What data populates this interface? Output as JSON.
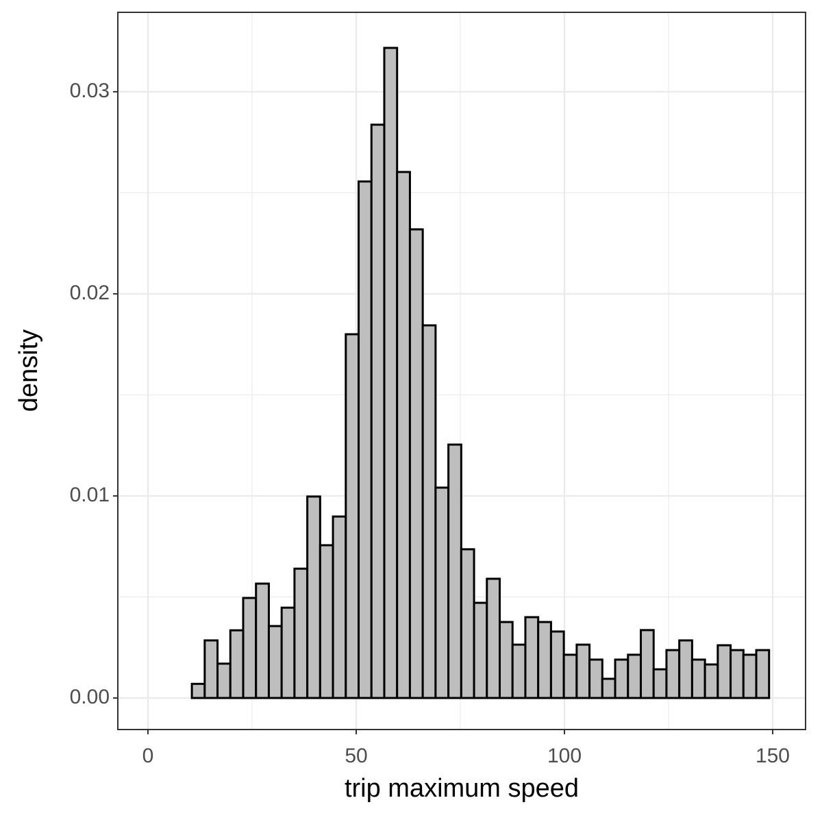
{
  "chart_data": {
    "type": "histogram",
    "x_label": "trip maximum speed",
    "y_label": "density",
    "bins": [
      1.3,
      4.38,
      7.46,
      10.54,
      13.62,
      16.7,
      19.78,
      22.86,
      25.94,
      29.02,
      32.1,
      35.18,
      38.26,
      41.34,
      44.42,
      47.5,
      50.58,
      53.66,
      56.74,
      59.82,
      62.9,
      65.98,
      69.06,
      72.14,
      75.22,
      78.3,
      81.38,
      84.46,
      87.54,
      90.62,
      93.7,
      96.78,
      99.86,
      102.94,
      106.02,
      109.1,
      112.18,
      115.26,
      118.34,
      121.42,
      124.5,
      127.58,
      130.66,
      133.74,
      136.82,
      139.9,
      142.98,
      146.06,
      149.14
    ],
    "values": [
      0,
      0,
      0,
      0.0007,
      0.00285,
      0.0017,
      0.00335,
      0.00495,
      0.00566,
      0.00356,
      0.00447,
      0.0064,
      0.00997,
      0.00756,
      0.00898,
      0.018,
      0.02556,
      0.02837,
      0.03217,
      0.02603,
      0.02319,
      0.01844,
      0.01041,
      0.01254,
      0.00736,
      0.00471,
      0.0059,
      0.00376,
      0.00264,
      0.004,
      0.00376,
      0.00329,
      0.00214,
      0.00264,
      0.0019,
      0.00095,
      0.0019,
      0.00214,
      0.00336,
      0.00142,
      0.00237,
      0.00285,
      0.0019,
      0.00166,
      0.00261,
      0.00237,
      0.00214,
      0.00237
    ],
    "color": "#bebebe",
    "edge_color": "#000000",
    "xlim": [
      -7.24,
      157.9
    ],
    "ylim": [
      -0.00156,
      0.03393
    ],
    "xticks": [
      0,
      50,
      100,
      150
    ],
    "yticks": [
      {
        "value": 0,
        "label": "0.00"
      },
      0.01,
      0.02,
      0.03
    ],
    "grid": true
  }
}
